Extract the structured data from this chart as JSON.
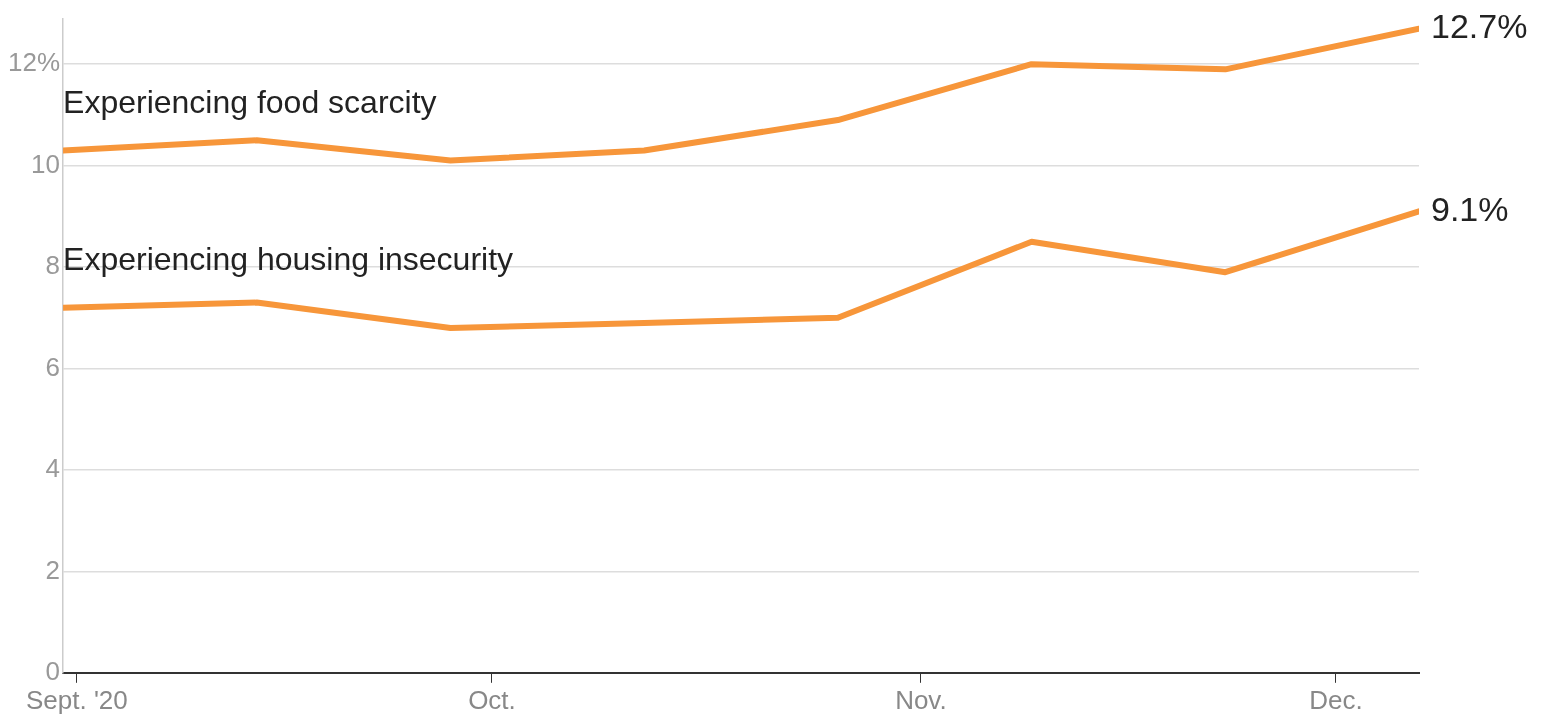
{
  "chart_data": {
    "type": "line",
    "x": [
      "2020-08-31",
      "2020-09-14",
      "2020-09-28",
      "2020-10-12",
      "2020-10-26",
      "2020-11-09",
      "2020-11-23",
      "2020-12-07"
    ],
    "series": [
      {
        "name": "Experiencing food scarcity",
        "color": "#f7963a",
        "values": [
          10.3,
          10.5,
          10.1,
          10.3,
          10.9,
          12.0,
          11.9,
          12.7
        ],
        "value_labels": [
          null,
          null,
          null,
          null,
          null,
          null,
          null,
          "12.7%"
        ]
      },
      {
        "name": "Experiencing housing insecurity",
        "color": "#f7963a",
        "values": [
          7.2,
          7.3,
          6.8,
          6.9,
          7.0,
          8.5,
          7.9,
          9.1
        ],
        "value_labels": [
          null,
          null,
          null,
          null,
          null,
          null,
          null,
          "9.1%"
        ]
      }
    ],
    "xlim": [
      "2020-08-31",
      "2020-12-07"
    ],
    "xticks": [
      {
        "value": "2020-09-01",
        "label": "Sept. '20"
      },
      {
        "value": "2020-10-01",
        "label": "Oct."
      },
      {
        "value": "2020-11-01",
        "label": "Nov."
      },
      {
        "value": "2020-12-01",
        "label": "Dec."
      }
    ],
    "ylim": [
      0,
      12.9
    ],
    "yticks": [
      0,
      2,
      4,
      6,
      8,
      10,
      {
        "value": 12,
        "label": "12%"
      }
    ],
    "grid": "y",
    "legend": false,
    "marker": "none",
    "line_style": "solid"
  }
}
